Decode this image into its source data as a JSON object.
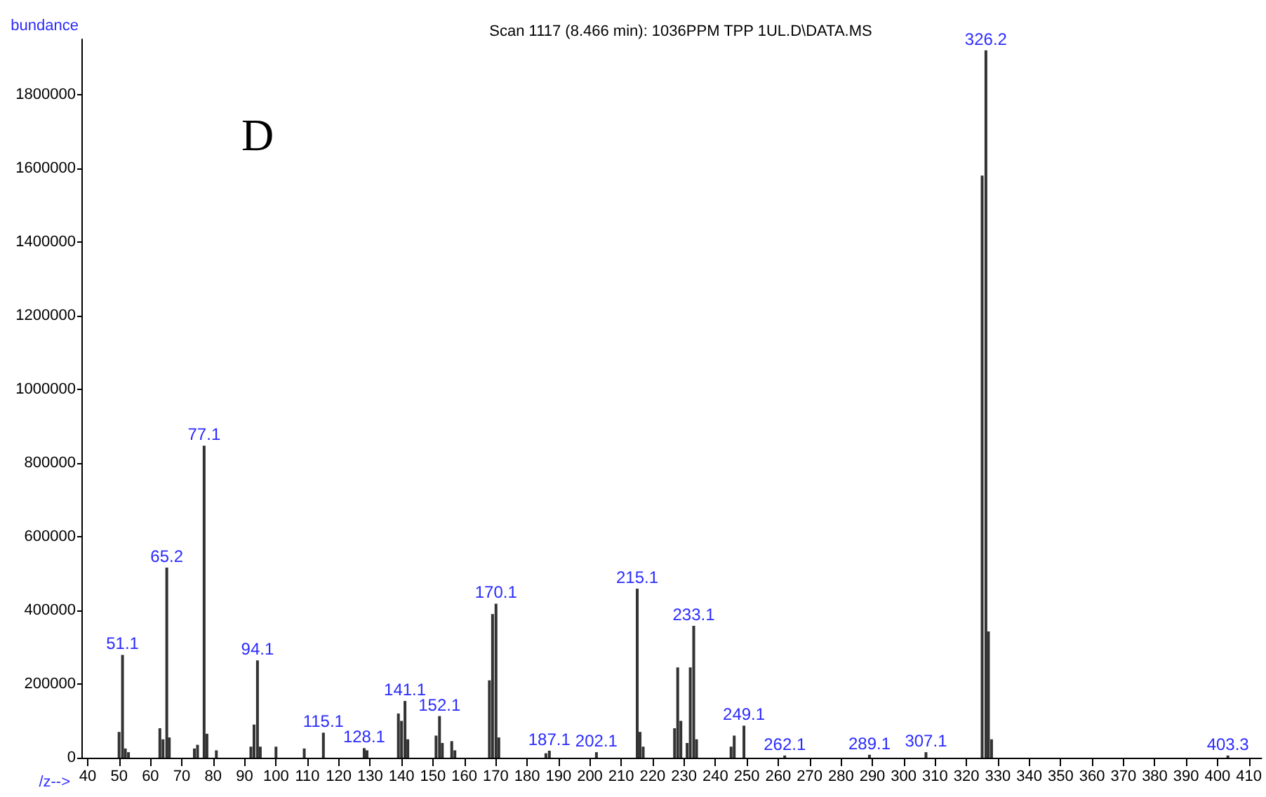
{
  "chart_data": {
    "type": "bar",
    "title": "Scan 1117 (8.466 min): 1036PPM TPP 1UL.D\\DATA.MS",
    "xlabel": "/z-->",
    "ylabel": "bundance",
    "x": [
      50,
      51.1,
      52,
      53,
      63,
      64,
      65.2,
      66,
      74,
      75,
      77.1,
      78,
      81,
      92,
      93,
      94.1,
      95,
      100,
      109,
      115.1,
      128.1,
      129,
      139,
      140,
      141.1,
      142,
      151,
      152.1,
      153,
      156,
      157,
      168,
      169,
      170.1,
      171,
      186,
      187.1,
      202.1,
      215.1,
      216,
      217,
      227,
      228,
      229,
      231,
      232,
      233.1,
      234,
      245,
      246,
      249.1,
      262.1,
      289.1,
      307.1,
      325,
      326.2,
      327,
      328,
      403.3
    ],
    "values": [
      70000,
      279000,
      25000,
      15000,
      80000,
      50000,
      516000,
      55000,
      25000,
      35000,
      847000,
      65000,
      20000,
      30000,
      90000,
      264000,
      30000,
      30000,
      25000,
      68000,
      26000,
      20000,
      120000,
      100000,
      154000,
      50000,
      60000,
      113000,
      40000,
      45000,
      20000,
      210000,
      390000,
      418000,
      55000,
      12000,
      19000,
      15000,
      459000,
      70000,
      30000,
      80000,
      245000,
      100000,
      40000,
      245000,
      358000,
      50000,
      30000,
      60000,
      87000,
      6000,
      8000,
      15000,
      1580000,
      1920000,
      343000,
      50000,
      6000
    ],
    "color": "#333333",
    "xlim": [
      38,
      414
    ],
    "xticks": [
      40,
      50,
      60,
      70,
      80,
      90,
      100,
      110,
      120,
      130,
      140,
      150,
      160,
      170,
      180,
      190,
      200,
      210,
      220,
      230,
      240,
      250,
      260,
      270,
      280,
      290,
      300,
      310,
      320,
      330,
      340,
      350,
      360,
      370,
      380,
      390,
      400,
      410
    ],
    "ylim": [
      0,
      1950000
    ],
    "yticks": [
      0,
      200000,
      400000,
      600000,
      800000,
      1000000,
      1200000,
      1400000,
      1600000,
      1800000
    ],
    "grid": false,
    "annotations": [
      "D",
      {
        "text": "51.1",
        "x": 51.1,
        "y": 279000
      },
      {
        "text": "65.2",
        "x": 65.2,
        "y": 516000
      },
      {
        "text": "77.1",
        "x": 77.1,
        "y": 847000
      },
      {
        "text": "94.1",
        "x": 94.1,
        "y": 264000
      },
      {
        "text": "115.1",
        "x": 115.1,
        "y": 68000
      },
      {
        "text": "128.1",
        "x": 128.1,
        "y": 26000
      },
      {
        "text": "141.1",
        "x": 141.1,
        "y": 154000
      },
      {
        "text": "152.1",
        "x": 152.1,
        "y": 113000
      },
      {
        "text": "170.1",
        "x": 170.1,
        "y": 418000
      },
      {
        "text": "187.1",
        "x": 187.1,
        "y": 19000
      },
      {
        "text": "202.1",
        "x": 202.1,
        "y": 15000
      },
      {
        "text": "215.1",
        "x": 215.1,
        "y": 459000
      },
      {
        "text": "233.1",
        "x": 233.1,
        "y": 358000
      },
      {
        "text": "249.1",
        "x": 249.1,
        "y": 87000
      },
      {
        "text": "262.1",
        "x": 262.1,
        "y": 6000
      },
      {
        "text": "289.1",
        "x": 289.1,
        "y": 8000
      },
      {
        "text": "307.1",
        "x": 307.1,
        "y": 15000
      },
      {
        "text": "326.2",
        "x": 326.2,
        "y": 1920000
      },
      {
        "text": "403.3",
        "x": 403.3,
        "y": 6000
      }
    ]
  }
}
